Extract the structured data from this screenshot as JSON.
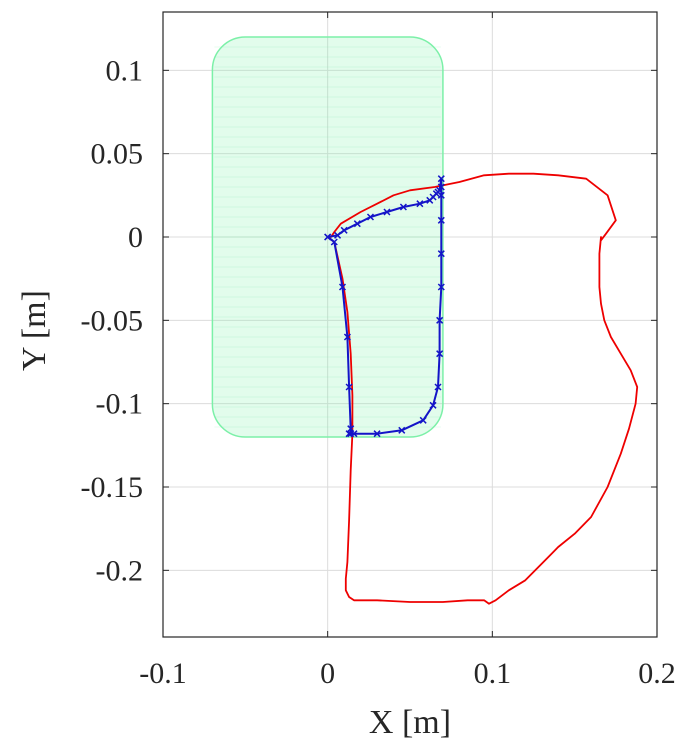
{
  "chart_data": {
    "type": "line",
    "title": "",
    "xlabel": "X [m]",
    "ylabel": "Y [m]",
    "xlim": [
      -0.1,
      0.2
    ],
    "ylim": [
      -0.24,
      0.135
    ],
    "grid": true,
    "x_ticks": [
      -0.1,
      0,
      0.1,
      0.2
    ],
    "x_tick_labels": [
      "-0.1",
      "0",
      "0.1",
      "0.2"
    ],
    "y_ticks": [
      0.1,
      0.05,
      0,
      -0.05,
      -0.1,
      -0.15,
      -0.2
    ],
    "y_tick_labels": [
      "0.1",
      "0.05",
      "0",
      "-0.05",
      "-0.1",
      "-0.15",
      "-0.2"
    ],
    "workspace_region": {
      "x_range": [
        -0.07,
        0.07
      ],
      "y_range": [
        -0.12,
        0.12
      ],
      "corner_radius": 0.02,
      "color": "#7cf0a8"
    },
    "series": [
      {
        "color": "#ee0000",
        "marker": "none",
        "x": [
          0.0,
          0.004,
          0.009,
          0.012,
          0.014,
          0.015,
          0.015,
          0.014,
          0.013,
          0.012,
          0.011,
          0.011,
          0.013,
          0.016,
          0.03,
          0.05,
          0.07,
          0.085,
          0.095,
          0.098,
          0.102,
          0.11,
          0.12,
          0.13,
          0.136,
          0.14,
          0.15,
          0.16,
          0.17,
          0.178,
          0.183,
          0.187,
          0.188,
          0.184,
          0.178,
          0.172,
          0.168,
          0.166,
          0.165,
          0.165,
          0.166,
          0.166,
          0.169,
          0.175,
          0.17,
          0.157,
          0.14,
          0.125,
          0.11,
          0.095,
          0.08,
          0.065,
          0.05,
          0.04,
          0.03,
          0.02,
          0.008,
          0.004,
          0.002,
          0.0
        ],
        "y": [
          0.0,
          -0.003,
          -0.025,
          -0.045,
          -0.07,
          -0.095,
          -0.118,
          -0.14,
          -0.17,
          -0.195,
          -0.205,
          -0.212,
          -0.216,
          -0.218,
          -0.218,
          -0.219,
          -0.219,
          -0.218,
          -0.218,
          -0.22,
          -0.218,
          -0.212,
          -0.206,
          -0.196,
          -0.19,
          -0.186,
          -0.178,
          -0.168,
          -0.15,
          -0.13,
          -0.115,
          -0.1,
          -0.09,
          -0.08,
          -0.07,
          -0.06,
          -0.05,
          -0.04,
          -0.03,
          -0.01,
          0.0,
          -0.002,
          0.002,
          0.01,
          0.025,
          0.035,
          0.037,
          0.038,
          0.038,
          0.037,
          0.033,
          0.03,
          0.028,
          0.025,
          0.02,
          0.015,
          0.008,
          0.003,
          0.0,
          0.0
        ]
      },
      {
        "color": "#1414c8",
        "marker": "x",
        "x": [
          0.0,
          0.004,
          0.009,
          0.012,
          0.013,
          0.014,
          0.014,
          0.013,
          0.016,
          0.03,
          0.045,
          0.058,
          0.064,
          0.067,
          0.068,
          0.068,
          0.069,
          0.069,
          0.069,
          0.069,
          0.069,
          0.069,
          0.068,
          0.067,
          0.066,
          0.064,
          0.062,
          0.056,
          0.046,
          0.036,
          0.026,
          0.018,
          0.01,
          0.006,
          0.0
        ],
        "y": [
          0.0,
          -0.003,
          -0.03,
          -0.06,
          -0.09,
          -0.115,
          -0.118,
          -0.118,
          -0.118,
          -0.118,
          -0.116,
          -0.11,
          -0.101,
          -0.09,
          -0.07,
          -0.05,
          -0.03,
          -0.01,
          0.01,
          0.025,
          0.03,
          0.035,
          0.028,
          0.027,
          0.026,
          0.024,
          0.022,
          0.02,
          0.018,
          0.015,
          0.012,
          0.008,
          0.004,
          0.001,
          0.0
        ]
      }
    ]
  }
}
